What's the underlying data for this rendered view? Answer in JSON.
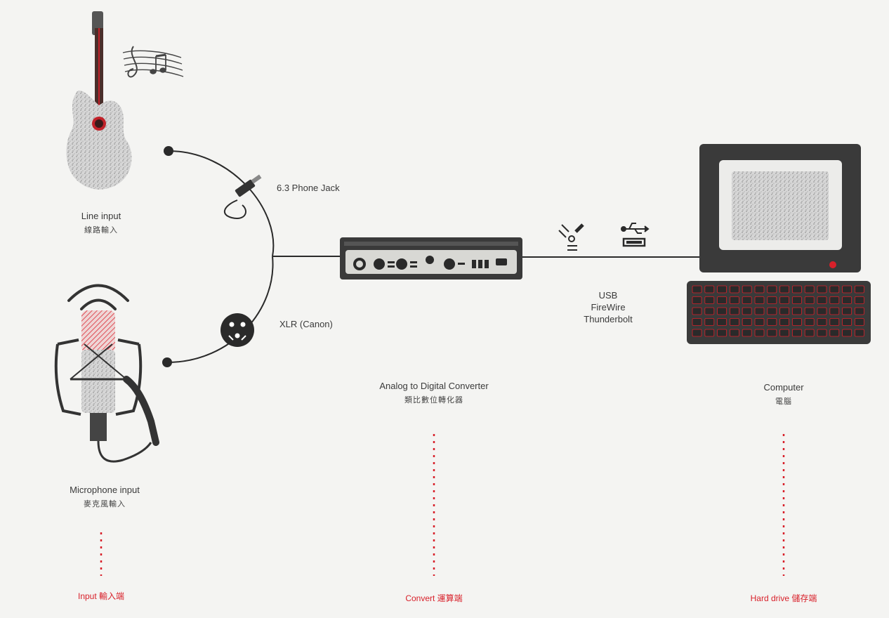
{
  "sources": {
    "line_input": {
      "label": "Line input",
      "label_zh": "線路輸入"
    },
    "mic_input": {
      "label": "Microphone input",
      "label_zh": "麥克風輸入"
    }
  },
  "connectors": {
    "phone_jack": "6.3 Phone Jack",
    "xlr": "XLR (Canon)"
  },
  "converter": {
    "label": "Analog to Digital Converter",
    "label_zh": "類比數位轉化器"
  },
  "interfaces": [
    "USB",
    "FireWire",
    "Thunderbolt"
  ],
  "computer": {
    "label": "Computer",
    "label_zh": "電腦"
  },
  "stages": {
    "input": "Input 輸入端",
    "convert": "Convert 運算端",
    "storage": "Hard drive 儲存端"
  },
  "icons": [
    "guitar-icon",
    "music-notes-icon",
    "microphone-icon",
    "sound-wave-icon",
    "phone-jack-plug-icon",
    "xlr-connector-icon",
    "firewire-icon",
    "usb-icon",
    "monitor-icon",
    "keyboard-icon"
  ],
  "colors": {
    "accent": "#d8202a",
    "line": "#2a2a2a",
    "device": "#3a3a3a",
    "background": "#f4f4f2"
  }
}
